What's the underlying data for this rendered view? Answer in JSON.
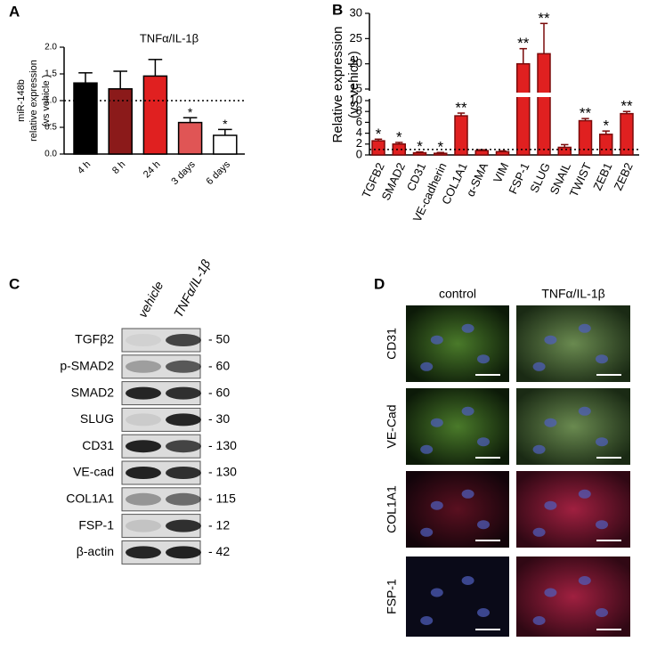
{
  "chart_data": [
    {
      "type": "bar",
      "panel_label": "A",
      "title": "TNFα/IL-1β",
      "y_label": [
        "miR-148b",
        "relative expression",
        "(vs vehicle )"
      ],
      "categories": [
        "4 h",
        "8 h",
        "24 h",
        "3 days",
        "6 days"
      ],
      "values": [
        1.33,
        1.22,
        1.46,
        0.59,
        0.35
      ],
      "errors": [
        0.19,
        0.33,
        0.31,
        0.09,
        0.11
      ],
      "colors": [
        "#000000",
        "#8b1a1a",
        "#e02020",
        "#e05555",
        "#ffffff"
      ],
      "annotations": [
        null,
        null,
        null,
        "*",
        "*"
      ],
      "reference_line": 1,
      "ylim": [
        0,
        2
      ],
      "yticks": [
        {
          "value": 0,
          "label": "0.0"
        },
        0.5,
        {
          "value": 1,
          "label": "1.0"
        },
        1.5,
        {
          "value": 2,
          "label": "2.0"
        }
      ]
    },
    {
      "type": "bar",
      "panel_label": "B",
      "y_label": [
        "Relative expression",
        "(vs vehicle)"
      ],
      "categories": [
        "TGFB2",
        "SMAD2",
        "CD31",
        "VE-cadherin",
        "COL1A1",
        "α-SMA",
        "VIM",
        "FSP-1",
        "SLUG",
        "SNAIL",
        "TWIST",
        "ZEB1",
        "ZEB2"
      ],
      "values": [
        2.6,
        2.0,
        0.4,
        0.3,
        7.2,
        0.8,
        0.6,
        20,
        22,
        1.4,
        6.3,
        3.8,
        7.6
      ],
      "errors": [
        0.3,
        0.3,
        0.15,
        0.15,
        0.5,
        0.15,
        0.15,
        3,
        6,
        0.5,
        0.4,
        0.6,
        0.4
      ],
      "color": "#e02020",
      "annotations": [
        "*",
        "*",
        "*",
        "*",
        "**",
        null,
        null,
        "**",
        "**",
        null,
        "**",
        "*",
        "**"
      ],
      "reference_line": 1,
      "ylim": [
        0,
        30
      ],
      "ybreak": [
        10,
        15
      ],
      "yticks": [
        0,
        2,
        4,
        6,
        8,
        10,
        15,
        20,
        25,
        30
      ]
    }
  ],
  "western_blot": {
    "panel_label": "C",
    "columns": [
      "vehicle",
      "TNFα/IL-1β"
    ],
    "rows": [
      {
        "label": "TGFβ2",
        "mw": "- 50"
      },
      {
        "label": "p-SMAD2",
        "mw": "- 60"
      },
      {
        "label": "SMAD2",
        "mw": "- 60"
      },
      {
        "label": "SLUG",
        "mw": "- 30"
      },
      {
        "label": "CD31",
        "mw": "- 130"
      },
      {
        "label": "VE-cad",
        "mw": "- 130"
      },
      {
        "label": "COL1A1",
        "mw": "- 115"
      },
      {
        "label": "FSP-1",
        "mw": "- 12"
      },
      {
        "label": "β-actin",
        "mw": "- 42"
      }
    ]
  },
  "microscopy": {
    "panel_label": "D",
    "columns": [
      "control",
      "TNFα/IL-1β"
    ],
    "rows": [
      "CD31",
      "VE-Cad",
      "COL1A1",
      "FSP-1"
    ]
  }
}
